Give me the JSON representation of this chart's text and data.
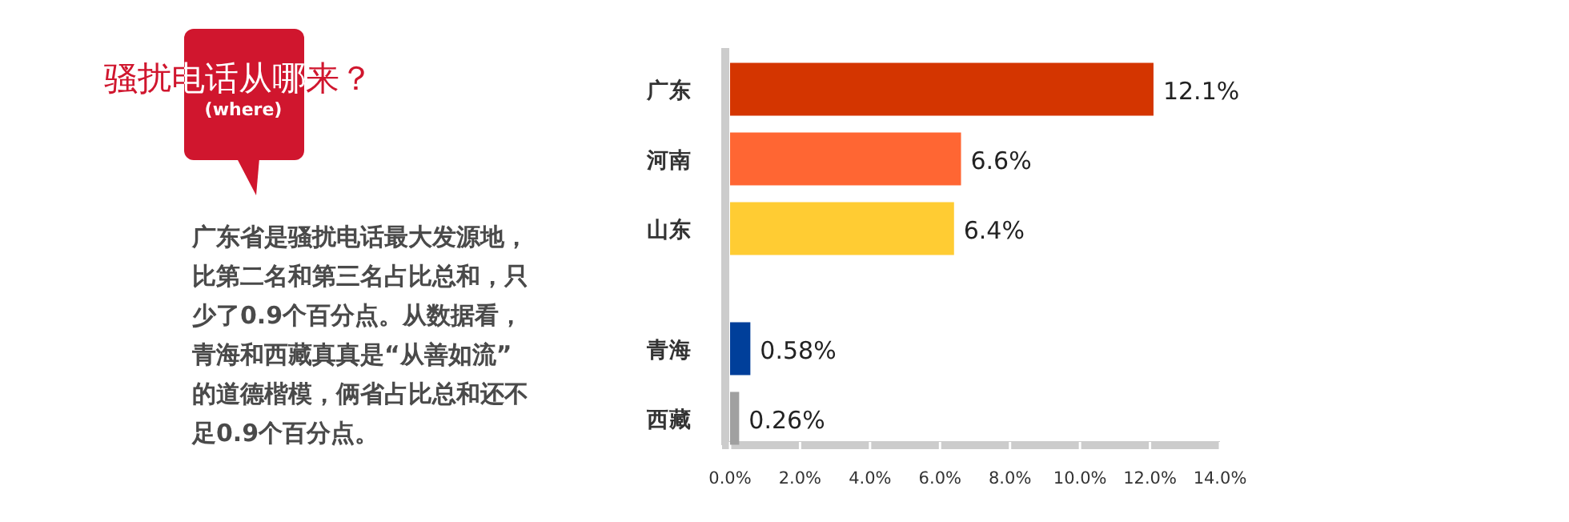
{
  "chart_data": {
    "type": "bar",
    "orientation": "horizontal",
    "title": "骚扰电话从哪来？",
    "subtitle": "(where)",
    "annotations": [
      "广东省是骚扰电话最大发源地，比第二名和第三名占比总和，只少了0.9个百分点。从数据看，青海和西藏真真是“从善如流”的道德楷模，俩省占比总和还不足0.9个百分点。"
    ],
    "categories": [
      "广东",
      "河南",
      "山东",
      null,
      "青海",
      "西藏"
    ],
    "values": [
      12.1,
      6.6,
      6.4,
      null,
      0.58,
      0.26
    ],
    "value_labels": [
      "12.1%",
      "6.6%",
      "6.4%",
      null,
      "0.58%",
      "0.26%"
    ],
    "colors": [
      "#d43500",
      "#ff6633",
      "#ffcc33",
      null,
      "#003f9a",
      "#a0a0a0"
    ],
    "xlim": [
      0,
      14
    ],
    "xticks": [
      {
        "value": 0,
        "label": "0.0%"
      },
      {
        "value": 2,
        "label": "2.0%"
      },
      {
        "value": 4,
        "label": "4.0%"
      },
      {
        "value": 6,
        "label": "6.0%"
      },
      {
        "value": 8,
        "label": "8.0%"
      },
      {
        "value": 10,
        "label": "10.0%"
      },
      {
        "value": 12,
        "label": "12.0%"
      },
      {
        "value": 14,
        "label": "14.0%"
      }
    ]
  }
}
